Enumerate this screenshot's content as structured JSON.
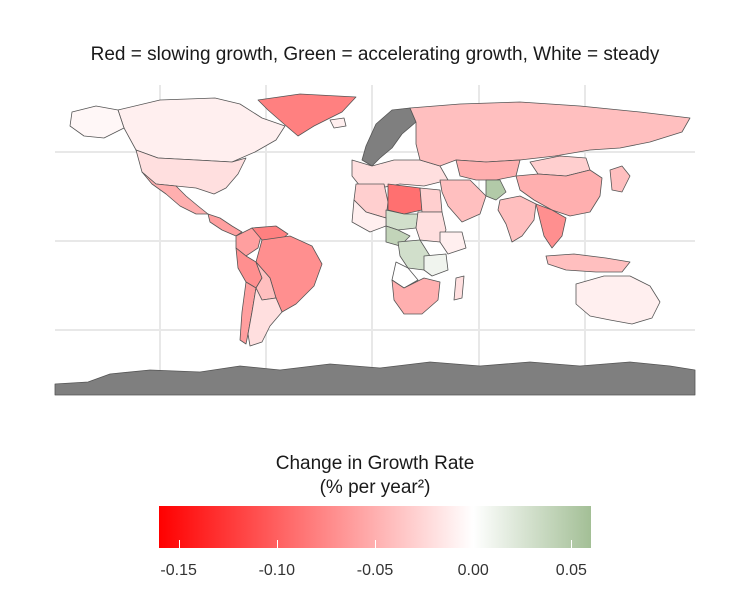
{
  "title": "Red = slowing growth, Green = accelerating growth, White = steady",
  "legend": {
    "title_line1": "Change in Growth Rate",
    "title_line2": "(% per year²)",
    "min": -0.16,
    "max": 0.06,
    "ticks": [
      {
        "value": -0.15,
        "label": "-0.15"
      },
      {
        "value": -0.1,
        "label": "-0.10"
      },
      {
        "value": -0.05,
        "label": "-0.05"
      },
      {
        "value": 0.0,
        "label": "0.00"
      },
      {
        "value": 0.05,
        "label": "0.05"
      }
    ],
    "colors": {
      "negative": "#ff0000",
      "zero": "#ffffff",
      "positive": "#a3bf96"
    }
  },
  "map": {
    "no_data_color": "#7f7f7f",
    "border_color": "#555555",
    "grid_color": "#e8e8e8",
    "regions": [
      {
        "name": "Canada",
        "value": -0.01
      },
      {
        "name": "Alaska",
        "value": -0.005
      },
      {
        "name": "Greenland",
        "value": -0.08
      },
      {
        "name": "United States",
        "value": -0.02
      },
      {
        "name": "Mexico",
        "value": -0.05
      },
      {
        "name": "Central America",
        "value": -0.06
      },
      {
        "name": "Colombia",
        "value": -0.06
      },
      {
        "name": "Venezuela",
        "value": -0.08
      },
      {
        "name": "Brazil",
        "value": -0.07
      },
      {
        "name": "Peru",
        "value": -0.07
      },
      {
        "name": "Bolivia",
        "value": -0.04
      },
      {
        "name": "Chile",
        "value": -0.06
      },
      {
        "name": "Argentina",
        "value": -0.02
      },
      {
        "name": "Iceland",
        "value": -0.01
      },
      {
        "name": "Scandinavia",
        "value": null
      },
      {
        "name": "Europe",
        "value": -0.02
      },
      {
        "name": "Russia",
        "value": -0.04
      },
      {
        "name": "Central Asia",
        "value": -0.05
      },
      {
        "name": "Mongolia",
        "value": -0.03
      },
      {
        "name": "China",
        "value": -0.05
      },
      {
        "name": "Middle East",
        "value": -0.04
      },
      {
        "name": "Afghanistan",
        "value": 0.05
      },
      {
        "name": "India",
        "value": -0.04
      },
      {
        "name": "Southeast Asia",
        "value": -0.07
      },
      {
        "name": "Indonesia",
        "value": -0.04
      },
      {
        "name": "Japan",
        "value": -0.04
      },
      {
        "name": "Algeria",
        "value": -0.03
      },
      {
        "name": "Libya",
        "value": -0.09
      },
      {
        "name": "Egypt",
        "value": -0.03
      },
      {
        "name": "Niger",
        "value": 0.03
      },
      {
        "name": "Mali",
        "value": -0.01
      },
      {
        "name": "Nigeria",
        "value": 0.04
      },
      {
        "name": "Sudan",
        "value": -0.02
      },
      {
        "name": "Ethiopia",
        "value": -0.01
      },
      {
        "name": "DR Congo",
        "value": 0.03
      },
      {
        "name": "Tanzania",
        "value": 0.01
      },
      {
        "name": "Angola",
        "value": 0.0
      },
      {
        "name": "Southern Africa",
        "value": -0.05
      },
      {
        "name": "Madagascar",
        "value": -0.02
      },
      {
        "name": "Australia",
        "value": -0.01
      },
      {
        "name": "Antarctica",
        "value": null
      }
    ]
  }
}
